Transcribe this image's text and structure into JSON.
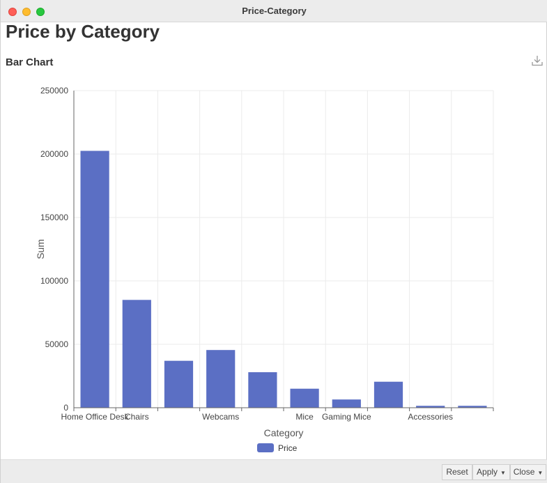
{
  "window": {
    "title": "Price-Category"
  },
  "page": {
    "title": "Price by Category",
    "section_title": "Bar Chart"
  },
  "icons": {
    "download": "download-icon"
  },
  "colors": {
    "bar": "#5b6fc4",
    "grid": "#ebebeb",
    "axis": "#666666"
  },
  "chart_data": {
    "type": "bar",
    "title": "",
    "xlabel": "Category",
    "ylabel": "Sum",
    "ylim": [
      0,
      250000
    ],
    "yticks": [
      0,
      50000,
      100000,
      150000,
      200000,
      250000
    ],
    "categories": [
      "Home Office Desk",
      "Chairs",
      "",
      "Webcams",
      "",
      "Mice",
      "Gaming Mice",
      "",
      "Accessories",
      ""
    ],
    "series": [
      {
        "name": "Price",
        "values": [
          202500,
          85000,
          37000,
          45500,
          28000,
          15000,
          6500,
          20500,
          1500,
          1500
        ]
      }
    ],
    "legend": "bottom-center",
    "grid": true
  },
  "footer": {
    "reset_label": "Reset",
    "apply_label": "Apply",
    "close_label": "Close"
  }
}
